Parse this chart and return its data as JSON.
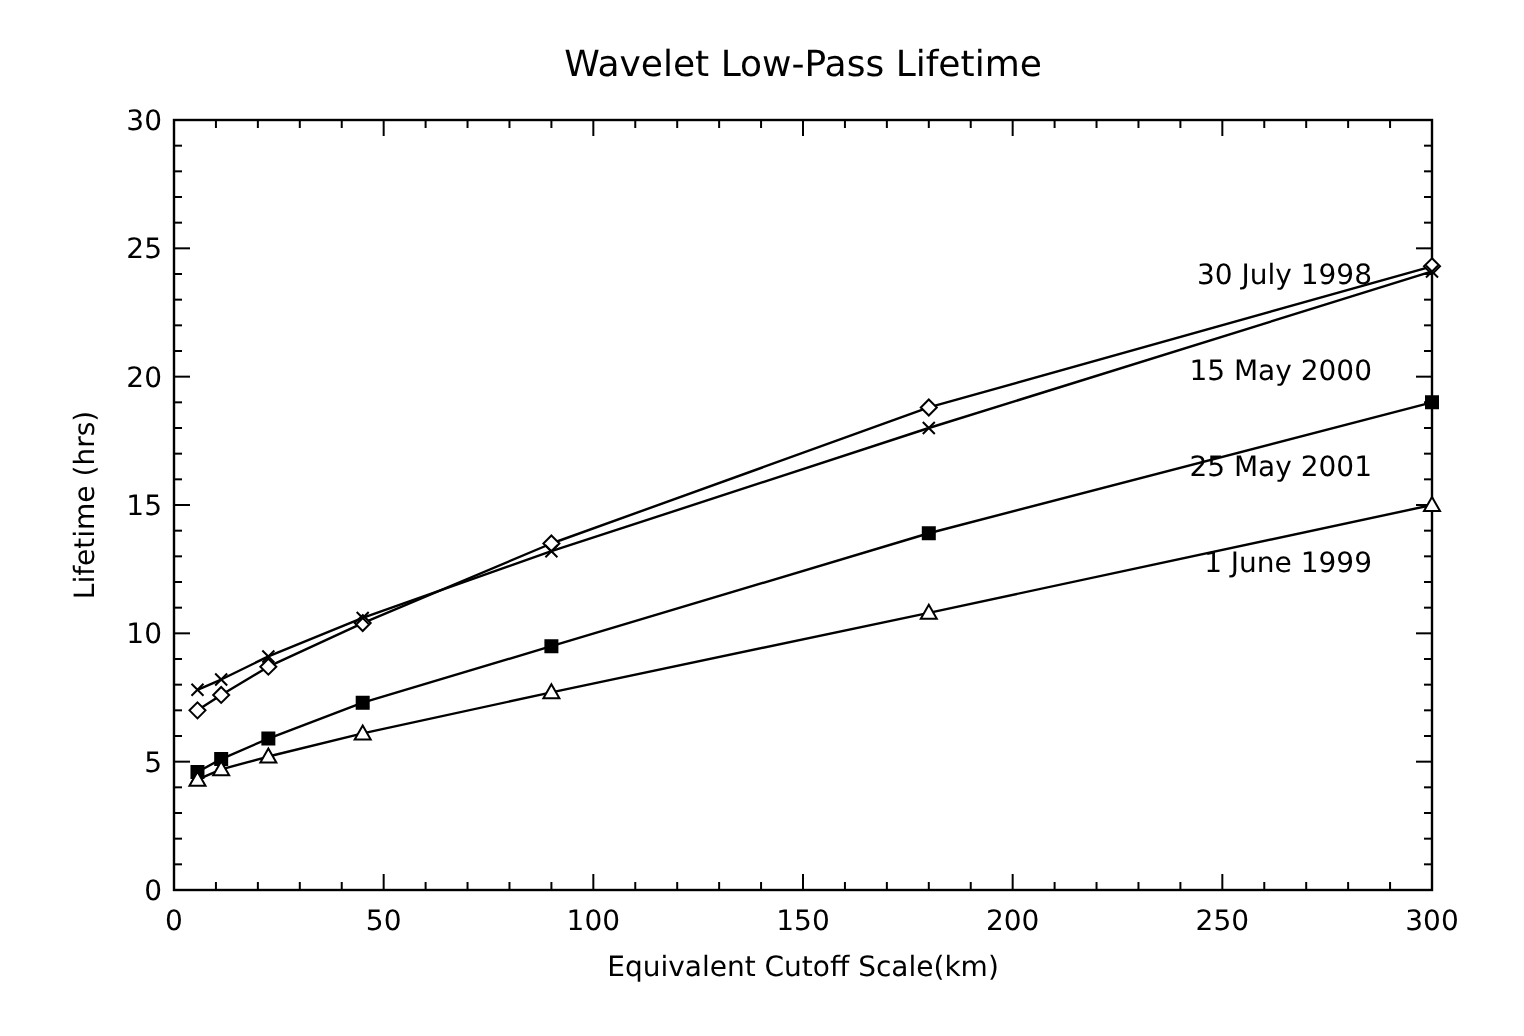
{
  "chart_data": {
    "type": "line",
    "title": "Wavelet Low-Pass Lifetime",
    "xlabel": "Equivalent Cutoff Scale(km)",
    "ylabel": "Lifetime (hrs)",
    "x": [
      5.6,
      11.25,
      22.5,
      45,
      90,
      180,
      300
    ],
    "series": [
      {
        "name": "30 July 1998",
        "color": "#000000",
        "marker": "diamond",
        "values": [
          7.0,
          7.6,
          8.7,
          10.4,
          13.5,
          18.8,
          24.3
        ]
      },
      {
        "name": "15 May 2000",
        "color": "#000000",
        "marker": "cross",
        "values": [
          7.8,
          8.2,
          9.1,
          10.6,
          13.2,
          18.0,
          24.1
        ]
      },
      {
        "name": "25 May 2001",
        "color": "#000000",
        "marker": "square",
        "values": [
          4.6,
          5.1,
          5.9,
          7.3,
          9.5,
          13.9,
          19.0
        ]
      },
      {
        "name": "1 June 1999",
        "color": "#000000",
        "marker": "triangle",
        "values": [
          4.3,
          4.7,
          5.2,
          6.1,
          7.7,
          10.8,
          15.0
        ]
      }
    ],
    "xlim": [
      0,
      300
    ],
    "xticks": [
      0,
      50,
      100,
      150,
      200,
      250,
      300
    ],
    "ylim": [
      0,
      30
    ],
    "yticks": [
      0,
      5,
      10,
      15,
      20,
      25,
      30
    ],
    "grid": false,
    "legend": "top right",
    "line_style": "solid"
  }
}
